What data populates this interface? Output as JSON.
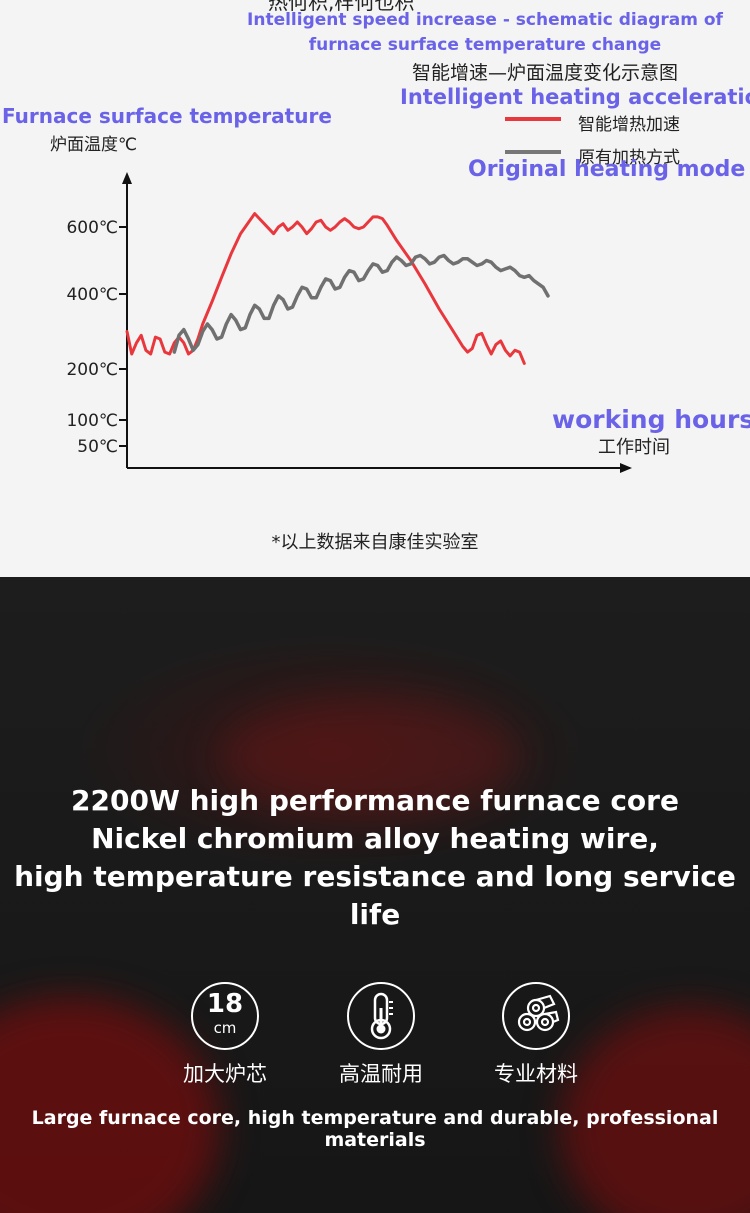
{
  "header": {
    "cut_title": "热何积,样何也积",
    "en_title_line1": "Intelligent speed increase - schematic diagram of",
    "en_title_line2": "furnace surface temperature change",
    "cn_title": "智能增速—炉面温度变化示意图"
  },
  "chart_data": {
    "type": "line",
    "ylabel_en": "Furnace surface temperature",
    "ylabel": "炉面温度℃",
    "xlabel_en": "working hours",
    "xlabel": "工作时间",
    "yticks": [
      "600℃",
      "400℃",
      "200℃",
      "100℃",
      "50℃"
    ],
    "ytick_values": [
      600,
      400,
      200,
      100,
      50
    ],
    "ylim": [
      0,
      760
    ],
    "xlim": [
      0,
      100
    ],
    "series": [
      {
        "name": "智能增热加速",
        "name_en": "Intelligent heating acceleration",
        "color": "#e8383d",
        "points": [
          [
            0,
            300
          ],
          [
            1,
            240
          ],
          [
            2,
            270
          ],
          [
            3,
            290
          ],
          [
            4,
            250
          ],
          [
            5,
            240
          ],
          [
            6,
            285
          ],
          [
            7,
            280
          ],
          [
            8,
            245
          ],
          [
            9,
            240
          ],
          [
            10,
            270
          ],
          [
            11,
            285
          ],
          [
            12,
            270
          ],
          [
            13,
            240
          ],
          [
            14,
            250
          ],
          [
            15,
            280
          ],
          [
            16,
            320
          ],
          [
            18,
            380
          ],
          [
            20,
            450
          ],
          [
            22,
            520
          ],
          [
            24,
            580
          ],
          [
            26,
            620
          ],
          [
            27,
            640
          ],
          [
            28,
            625
          ],
          [
            29,
            610
          ],
          [
            30,
            595
          ],
          [
            31,
            580
          ],
          [
            32,
            600
          ],
          [
            33,
            610
          ],
          [
            34,
            590
          ],
          [
            35,
            600
          ],
          [
            36,
            615
          ],
          [
            37,
            600
          ],
          [
            38,
            580
          ],
          [
            39,
            595
          ],
          [
            40,
            615
          ],
          [
            41,
            620
          ],
          [
            42,
            600
          ],
          [
            43,
            590
          ],
          [
            44,
            600
          ],
          [
            45,
            615
          ],
          [
            46,
            625
          ],
          [
            47,
            615
          ],
          [
            48,
            600
          ],
          [
            49,
            595
          ],
          [
            50,
            600
          ],
          [
            51,
            615
          ],
          [
            52,
            630
          ],
          [
            53,
            630
          ],
          [
            54,
            625
          ],
          [
            55,
            605
          ],
          [
            57,
            560
          ],
          [
            60,
            500
          ],
          [
            63,
            430
          ],
          [
            66,
            360
          ],
          [
            69,
            300
          ],
          [
            71,
            260
          ],
          [
            72,
            245
          ],
          [
            73,
            255
          ],
          [
            74,
            290
          ],
          [
            75,
            295
          ],
          [
            76,
            265
          ],
          [
            77,
            240
          ],
          [
            78,
            265
          ],
          [
            79,
            275
          ],
          [
            80,
            250
          ],
          [
            81,
            235
          ],
          [
            82,
            250
          ],
          [
            83,
            245
          ],
          [
            84,
            215
          ]
        ]
      },
      {
        "name": "原有加热方式",
        "name_en": "Original heating mode",
        "color": "#707070",
        "points": [
          [
            10,
            245
          ],
          [
            11,
            290
          ],
          [
            12,
            305
          ],
          [
            13,
            280
          ],
          [
            14,
            250
          ],
          [
            15,
            265
          ],
          [
            16,
            300
          ],
          [
            17,
            320
          ],
          [
            18,
            305
          ],
          [
            19,
            280
          ],
          [
            20,
            285
          ],
          [
            21,
            320
          ],
          [
            22,
            345
          ],
          [
            23,
            330
          ],
          [
            24,
            305
          ],
          [
            25,
            310
          ],
          [
            26,
            345
          ],
          [
            27,
            370
          ],
          [
            28,
            360
          ],
          [
            29,
            335
          ],
          [
            30,
            335
          ],
          [
            31,
            370
          ],
          [
            32,
            395
          ],
          [
            33,
            385
          ],
          [
            34,
            360
          ],
          [
            35,
            365
          ],
          [
            36,
            395
          ],
          [
            37,
            420
          ],
          [
            38,
            415
          ],
          [
            39,
            390
          ],
          [
            40,
            390
          ],
          [
            41,
            420
          ],
          [
            42,
            445
          ],
          [
            43,
            440
          ],
          [
            44,
            415
          ],
          [
            45,
            420
          ],
          [
            46,
            450
          ],
          [
            47,
            470
          ],
          [
            48,
            465
          ],
          [
            49,
            440
          ],
          [
            50,
            445
          ],
          [
            51,
            470
          ],
          [
            52,
            490
          ],
          [
            53,
            485
          ],
          [
            54,
            465
          ],
          [
            55,
            470
          ],
          [
            56,
            495
          ],
          [
            57,
            510
          ],
          [
            58,
            500
          ],
          [
            59,
            485
          ],
          [
            60,
            490
          ],
          [
            61,
            510
          ],
          [
            62,
            515
          ],
          [
            63,
            505
          ],
          [
            64,
            490
          ],
          [
            65,
            495
          ],
          [
            66,
            510
          ],
          [
            67,
            515
          ],
          [
            68,
            500
          ],
          [
            69,
            490
          ],
          [
            70,
            495
          ],
          [
            71,
            505
          ],
          [
            72,
            505
          ],
          [
            73,
            495
          ],
          [
            74,
            485
          ],
          [
            75,
            490
          ],
          [
            76,
            500
          ],
          [
            77,
            495
          ],
          [
            78,
            480
          ],
          [
            79,
            470
          ],
          [
            80,
            475
          ],
          [
            81,
            480
          ],
          [
            82,
            470
          ],
          [
            83,
            455
          ],
          [
            84,
            450
          ],
          [
            85,
            455
          ],
          [
            86,
            440
          ],
          [
            87,
            430
          ],
          [
            88,
            420
          ],
          [
            89,
            395
          ]
        ]
      }
    ]
  },
  "footnote": "*以上数据来自康佳实验室",
  "bottom": {
    "headline_line1": "2200W high performance furnace core",
    "headline_line2": "Nickel chromium alloy heating wire,",
    "headline_line3": "high temperature resistance and long service life",
    "features": [
      {
        "icon": "18cm-badge-icon",
        "value": "18",
        "unit": "cm",
        "label": "加大炉芯"
      },
      {
        "icon": "thermometer-icon",
        "label": "高温耐用"
      },
      {
        "icon": "material-rolls-icon",
        "label": "专业材料"
      }
    ],
    "tagline": "Large furnace core, high temperature and durable, professional materials"
  }
}
